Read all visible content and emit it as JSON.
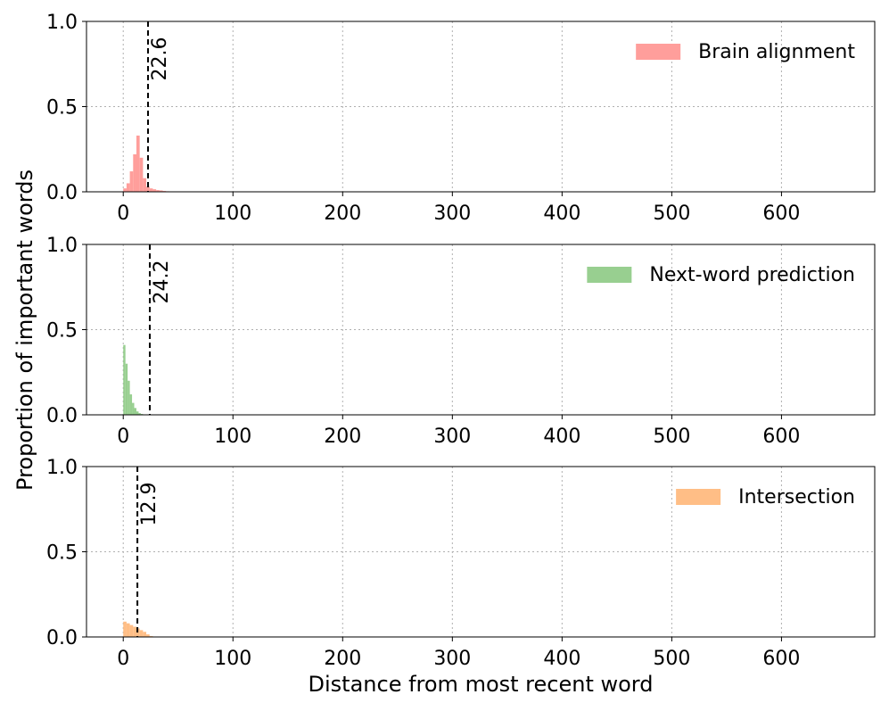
{
  "chart_data": [
    {
      "type": "histogram",
      "bins": [
        0,
        3,
        6,
        9,
        12,
        15,
        18,
        21,
        24,
        27,
        30,
        33,
        36,
        39,
        42,
        45,
        48
      ],
      "series": [
        {
          "name": "Brain alignment",
          "color": "#ff9e9b",
          "values": [
            0.02,
            0.05,
            0.12,
            0.22,
            0.33,
            0.2,
            0.08,
            0.03,
            0.02,
            0.015,
            0.01,
            0.008,
            0.005,
            0.003,
            0.002,
            0.001
          ]
        }
      ],
      "vline": 22.6,
      "xlim": [
        -33.5,
        685
      ],
      "ylim": [
        0,
        1
      ],
      "xticks": [
        0,
        100,
        200,
        300,
        400,
        500,
        600
      ],
      "yticks": [
        {
          "value": 0,
          "label": "0.0"
        },
        0.5,
        {
          "value": 1,
          "label": "1.0"
        }
      ],
      "grid": true,
      "legend": "upper right"
    },
    {
      "type": "histogram",
      "bins": [
        0,
        2,
        4,
        6,
        8,
        10,
        12,
        14,
        16,
        18,
        20
      ],
      "series": [
        {
          "name": "Next-word prediction",
          "color": "#98cf90",
          "values": [
            0.41,
            0.3,
            0.2,
            0.12,
            0.07,
            0.04,
            0.02,
            0.01,
            0.005,
            0.002
          ]
        }
      ],
      "vline": 24.2,
      "xlim": [
        -33.5,
        685
      ],
      "ylim": [
        0,
        1
      ],
      "xticks": [
        0,
        100,
        200,
        300,
        400,
        500,
        600
      ],
      "yticks": [
        {
          "value": 0,
          "label": "0.0"
        },
        0.5,
        {
          "value": 1,
          "label": "1.0"
        }
      ],
      "grid": true,
      "legend": "upper right",
      "ylabel": "Proportion of important words"
    },
    {
      "type": "histogram",
      "bins": [
        0,
        3,
        6,
        9,
        12,
        15,
        18,
        21,
        24,
        27
      ],
      "series": [
        {
          "name": "Intersection",
          "color": "#ffbe86",
          "values": [
            0.09,
            0.08,
            0.07,
            0.06,
            0.05,
            0.04,
            0.03,
            0.015,
            0.005
          ]
        }
      ],
      "vline": 12.9,
      "xlim": [
        -33.5,
        685
      ],
      "ylim": [
        0,
        1
      ],
      "xticks": [
        0,
        100,
        200,
        300,
        400,
        500,
        600
      ],
      "yticks": [
        {
          "value": 0,
          "label": "0.0"
        },
        0.5,
        {
          "value": 1,
          "label": "1.0"
        }
      ],
      "grid": true,
      "legend": "upper right",
      "xlabel": "Distance from most recent word"
    }
  ]
}
